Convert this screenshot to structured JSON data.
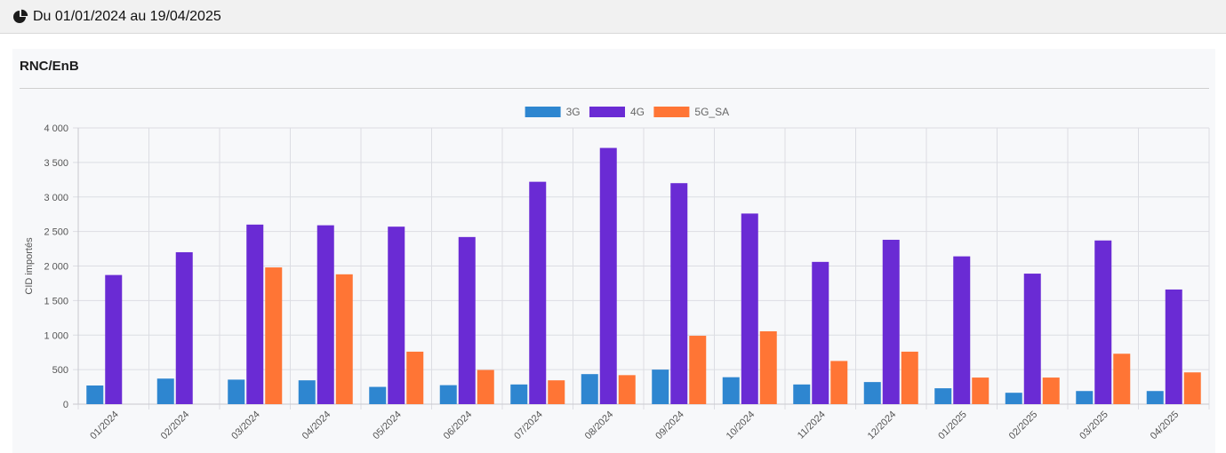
{
  "header": {
    "date_range": "Du 01/01/2024 au 19/04/2025"
  },
  "card": {
    "title": "RNC/EnB"
  },
  "chart_data": {
    "type": "bar",
    "ylabel": "CID importés",
    "xlabel": "",
    "ylim": [
      0,
      4000
    ],
    "yticks": [
      0,
      500,
      1000,
      1500,
      2000,
      2500,
      3000,
      3500,
      4000
    ],
    "ytick_labels": [
      "0",
      "500",
      "1 000",
      "1 500",
      "2 000",
      "2 500",
      "3 000",
      "3 500",
      "4 000"
    ],
    "grid": true,
    "legend_position": "top-center",
    "categories": [
      "01/2024",
      "02/2024",
      "03/2024",
      "04/2024",
      "05/2024",
      "06/2024",
      "07/2024",
      "08/2024",
      "09/2024",
      "10/2024",
      "11/2024",
      "12/2024",
      "01/2025",
      "02/2025",
      "03/2025",
      "04/2025"
    ],
    "series": [
      {
        "name": "3G",
        "color": "#2e86d0",
        "values": [
          270,
          370,
          355,
          345,
          250,
          275,
          285,
          435,
          500,
          390,
          285,
          320,
          230,
          165,
          190,
          190
        ]
      },
      {
        "name": "4G",
        "color": "#6a2bd4",
        "values": [
          1870,
          2200,
          2600,
          2590,
          2570,
          2420,
          3220,
          3710,
          3200,
          2760,
          2060,
          2380,
          2140,
          1890,
          2370,
          1660
        ]
      },
      {
        "name": "5G_SA",
        "color": "#ff7535",
        "values": [
          0,
          0,
          1980,
          1880,
          760,
          495,
          345,
          420,
          990,
          1055,
          625,
          760,
          385,
          385,
          730,
          460
        ]
      }
    ]
  }
}
